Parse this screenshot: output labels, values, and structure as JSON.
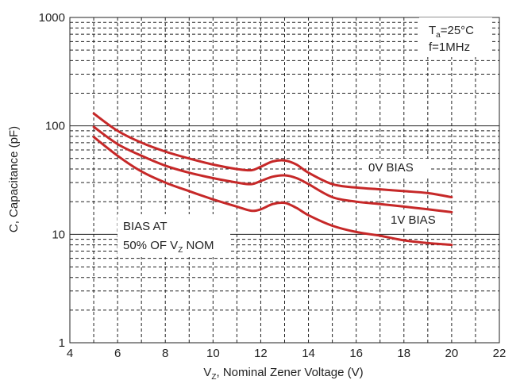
{
  "chart_data": {
    "type": "line",
    "title": "",
    "xlabel": "V",
    "xlabel_sub": "Z",
    "xlabel_rest": ", Nominal Zener Voltage (V)",
    "ylabel": "C, Capacitance (pF)",
    "xlim": [
      4,
      22
    ],
    "ylim": [
      1,
      1000
    ],
    "yscale": "log",
    "grid": true,
    "x_ticks": [
      4,
      6,
      8,
      10,
      12,
      14,
      16,
      18,
      20,
      22
    ],
    "y_ticks": [
      1,
      10,
      100,
      1000
    ],
    "line_color": "#c62828",
    "series": [
      {
        "name": "0V BIAS",
        "x": [
          5,
          6,
          7,
          8,
          9,
          10,
          11,
          11.6,
          12,
          12.5,
          13,
          13.5,
          14,
          15,
          16,
          17,
          18,
          19,
          20
        ],
        "values": [
          130,
          90,
          70,
          58,
          50,
          44,
          40,
          39,
          42,
          47,
          48,
          44,
          37,
          29,
          27,
          26,
          25,
          24,
          22
        ]
      },
      {
        "name": "",
        "x": [
          5,
          6,
          7,
          8,
          9,
          10,
          11,
          11.6,
          12,
          12.5,
          13,
          13.5,
          14,
          15,
          16,
          17,
          18,
          19,
          20
        ],
        "values": [
          98,
          68,
          53,
          43,
          37,
          33,
          30,
          29,
          31,
          34,
          35,
          33,
          29,
          22,
          20,
          19,
          18,
          17,
          16
        ]
      },
      {
        "name": "1V BIAS",
        "x": [
          5,
          6,
          7,
          8,
          9,
          10,
          11,
          11.6,
          12,
          12.5,
          13,
          13.5,
          14,
          15,
          16,
          17,
          18,
          19,
          20
        ],
        "values": [
          79,
          53,
          38,
          30,
          25,
          21,
          18,
          16.5,
          17,
          19,
          19.5,
          17.5,
          15,
          12,
          10.5,
          9.7,
          8.8,
          8.3,
          8
        ]
      }
    ],
    "annotations": {
      "conditions_line1_a": "T",
      "conditions_line1_sub": "a",
      "conditions_line1_b": "=25°C",
      "conditions_line2": "f=1MHz",
      "bias_line1": "BIAS AT",
      "bias_line2_a": "50% OF V",
      "bias_line2_sub": "Z",
      "bias_line2_b": " NOM",
      "label_top": "0V BIAS",
      "label_bottom": "1V BIAS"
    }
  }
}
